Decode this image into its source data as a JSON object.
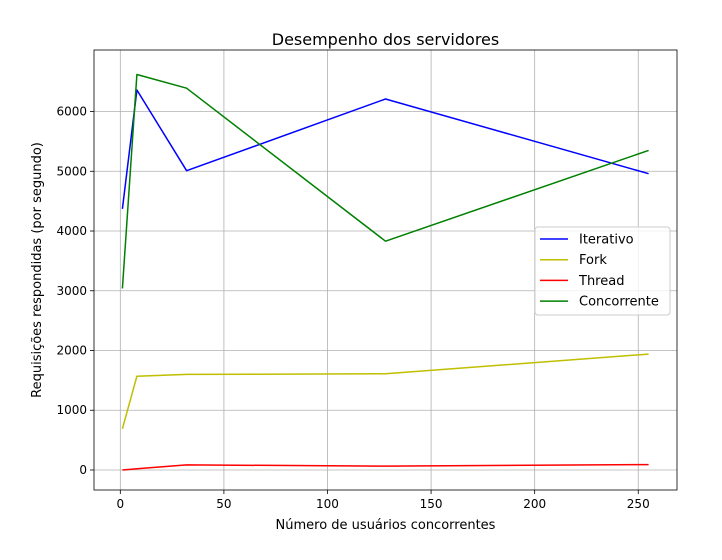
{
  "chart_data": {
    "type": "line",
    "title": "Desempenho dos servidores",
    "xlabel": "Número de usuários concorrentes",
    "ylabel": "Requisições respondidas (por segundo)",
    "xlim": [
      -12.7,
      268.7
    ],
    "ylim": [
      -335,
      7030
    ],
    "xticks": [
      0,
      50,
      100,
      150,
      200,
      250
    ],
    "yticks": [
      0,
      1000,
      2000,
      3000,
      4000,
      5000,
      6000
    ],
    "grid": true,
    "legend_position": "center-right",
    "x": [
      1,
      8,
      32,
      128,
      255
    ],
    "series": [
      {
        "name": "Iterativo",
        "color": "#0000ff",
        "values": [
          4370,
          6360,
          5010,
          6210,
          4960
        ]
      },
      {
        "name": "Fork",
        "color": "#bfbf00",
        "values": [
          690,
          1570,
          1600,
          1610,
          1940
        ]
      },
      {
        "name": "Thread",
        "color": "#ff0000",
        "values": [
          0,
          20,
          85,
          65,
          90
        ]
      },
      {
        "name": "Concorrente",
        "color": "#008000",
        "values": [
          3040,
          6620,
          6390,
          3830,
          5350
        ]
      }
    ]
  }
}
